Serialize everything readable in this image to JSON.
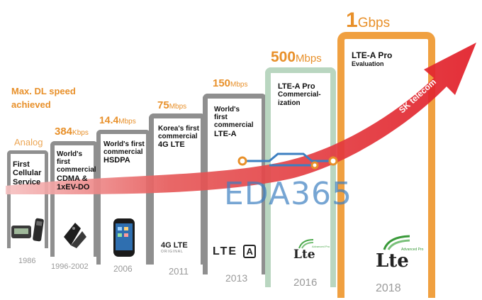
{
  "heading": {
    "line1": "Max. DL speed",
    "line2": "achieved"
  },
  "colors": {
    "orange": "#e8902a",
    "grey_panel": "#8f8f8f",
    "green_panel": "#b9d6c0",
    "orange_panel": "#f0a040",
    "arrow": "#e3202a",
    "watermark": "#3d7fc1"
  },
  "stages": [
    {
      "speed_num": "Analog",
      "speed_unit": "",
      "text": [
        "First",
        "Cellular",
        "Service"
      ],
      "year": "1986",
      "device": "pager-and-brick-phone-icon"
    },
    {
      "speed_num": "384",
      "speed_unit": "Kbps",
      "text": [
        "World's",
        "first",
        "commercial",
        "CDMA &",
        "1xEV-DO"
      ],
      "year": "1996-2002",
      "device": "flip-phone-icon"
    },
    {
      "speed_num": "14.4",
      "speed_unit": "Mbps",
      "text": [
        "World's first",
        "commercial",
        "HSDPA"
      ],
      "year": "2006",
      "device": "smartphone-icon"
    },
    {
      "speed_num": "75",
      "speed_unit": "Mbps",
      "text": [
        "Korea's first",
        "commercial",
        "4G LTE"
      ],
      "year": "2011",
      "device": "4g-lte-logo",
      "logo": "4G LTE",
      "logo_sub": "ORIGINAL"
    },
    {
      "speed_num": "150",
      "speed_unit": "Mbps",
      "text": [
        "World's",
        "first",
        "commercial",
        "LTE-A"
      ],
      "year": "2013",
      "device": "lte-a-logo",
      "logo": "LTE",
      "logo_badge": "A"
    },
    {
      "speed_num": "500",
      "speed_unit": "Mbps",
      "text": [
        "LTE-A Pro",
        "Commercial-",
        "ization"
      ],
      "year": "2016",
      "device": "lte-advanced-pro-logo",
      "logo": "Lte",
      "logo_sub": "Advanced Pro"
    },
    {
      "speed_num": "1",
      "speed_unit": "Gbps",
      "text": [
        "LTE-A Pro",
        "Evaluation"
      ],
      "year": "2018",
      "device": "lte-advanced-pro-logo-large",
      "logo": "Lte",
      "logo_sub": "Advanced Pro"
    }
  ],
  "brand": {
    "name": "SK telecom"
  },
  "watermark": {
    "text": "EDA365"
  }
}
